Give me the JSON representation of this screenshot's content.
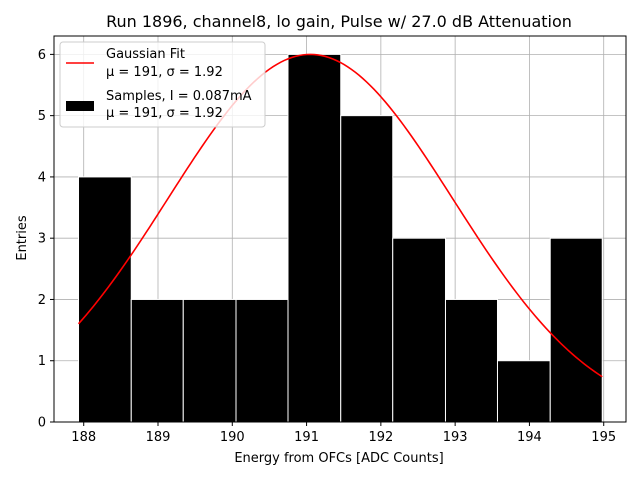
{
  "chart_data": {
    "type": "bar",
    "title": "Run 1896, channel8, lo gain, Pulse w/ 27.0 dB Attenuation",
    "xlabel": "Energy from OFCs [ADC Counts]",
    "ylabel": "Entries",
    "xlim": [
      187.6,
      195.3
    ],
    "ylim": [
      0,
      6.3
    ],
    "xticks": [
      188,
      189,
      190,
      191,
      192,
      193,
      194,
      195
    ],
    "yticks": [
      0,
      1,
      2,
      3,
      4,
      5,
      6
    ],
    "grid": true,
    "legend_position": "top-left",
    "histogram": {
      "name": "Samples",
      "legend_line1": "Samples, I = 0.087mA",
      "legend_line2": "μ = 191, σ = 1.92",
      "color": "#000000",
      "edge_color": "#ffffff",
      "bin_edges": [
        187.93,
        188.64,
        189.34,
        190.05,
        190.75,
        191.46,
        192.16,
        192.87,
        193.57,
        194.28,
        194.98
      ],
      "counts": [
        4,
        2,
        2,
        2,
        6,
        5,
        3,
        2,
        1,
        3
      ]
    },
    "fit": {
      "name": "Gaussian Fit",
      "legend_line1": "Gaussian Fit",
      "legend_line2": "μ = 191, σ = 1.92",
      "color": "#ff0000",
      "mu": 191.05,
      "sigma": 1.92,
      "amplitude": 6.0,
      "x_range": [
        187.93,
        194.98
      ]
    }
  }
}
